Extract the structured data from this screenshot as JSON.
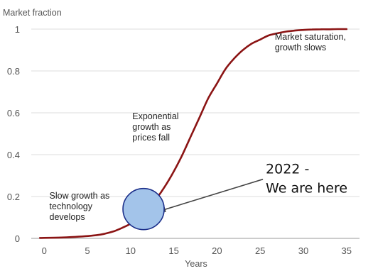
{
  "chart_data": {
    "type": "line",
    "ylabel": "Market fraction",
    "xlabel": "Years",
    "xlim": [
      -1.5,
      36.5
    ],
    "ylim": [
      0,
      1
    ],
    "x_ticks": [
      0,
      5,
      10,
      15,
      20,
      25,
      30,
      35
    ],
    "y_ticks": [
      0,
      0.2,
      0.4,
      0.6,
      0.8,
      1
    ],
    "y_tick_labels": [
      "0",
      "0.2",
      "0.4",
      "0.6",
      "0.8",
      "1"
    ],
    "grid": "horizontal",
    "series": [
      {
        "color": "#8b1414",
        "x": [
          -0.5,
          2,
          4,
          6,
          7,
          8,
          9,
          10,
          11,
          12,
          13,
          14,
          15,
          16,
          17,
          18,
          19,
          20,
          21,
          22,
          23,
          24,
          25,
          26,
          27,
          28,
          29,
          30,
          31,
          32,
          33,
          34,
          35
        ],
        "y": [
          0.002,
          0.004,
          0.008,
          0.015,
          0.022,
          0.033,
          0.05,
          0.07,
          0.1,
          0.14,
          0.19,
          0.25,
          0.32,
          0.4,
          0.49,
          0.58,
          0.67,
          0.74,
          0.81,
          0.86,
          0.9,
          0.93,
          0.95,
          0.97,
          0.98,
          0.988,
          0.993,
          0.996,
          0.998,
          0.999,
          0.999,
          1.0,
          1.0
        ]
      }
    ],
    "annotations": [
      {
        "lines": [
          "Market saturation,",
          "growth slows"
        ],
        "x": 26.7,
        "y": 0.95
      },
      {
        "lines": [
          "Exponential",
          "growth as",
          "prices fall"
        ],
        "x": 10.2,
        "y": 0.57
      },
      {
        "lines": [
          "Slow growth as",
          "technology",
          "develops"
        ],
        "x": 0.6,
        "y": 0.19
      }
    ],
    "callout": {
      "lines": [
        "2022 -",
        "We are here"
      ],
      "marker_x": 11.5,
      "marker_y": 0.14,
      "marker_fill": "#a3c4ea",
      "marker_stroke": "#1c2f8a"
    }
  }
}
